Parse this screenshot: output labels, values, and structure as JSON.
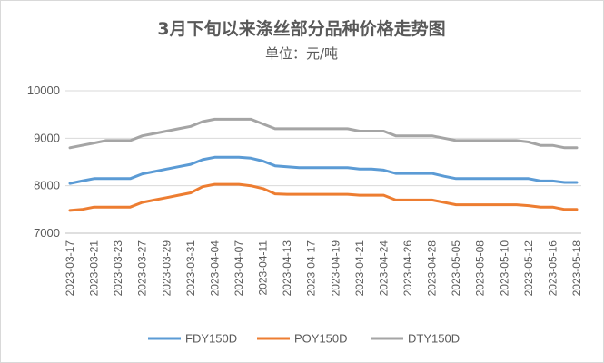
{
  "chart_data": {
    "type": "line",
    "title": "3月下旬以来涤丝部分品种价格走势图",
    "subtitle": "单位：元/吨",
    "xlabel": "",
    "ylabel": "",
    "ylim": [
      7000,
      10000
    ],
    "yticks": [
      7000,
      8000,
      9000,
      10000
    ],
    "grid": "horizontal",
    "legend_position": "bottom",
    "x_tick_labels": [
      "2023-03-17",
      "2023-03-21",
      "2023-03-23",
      "2023-03-27",
      "2023-03-29",
      "2023-03-31",
      "2023-04-04",
      "2023-04-07",
      "2023-04-11",
      "2023-04-13",
      "2023-04-17",
      "2023-04-19",
      "2023-04-21",
      "2023-04-24",
      "2023-04-26",
      "2023-04-28",
      "2023-05-05",
      "2023-05-08",
      "2023-05-10",
      "2023-05-12",
      "2023-05-16",
      "2023-05-18"
    ],
    "x": [
      "2023-03-17",
      "2023-03-20",
      "2023-03-21",
      "2023-03-22",
      "2023-03-23",
      "2023-03-24",
      "2023-03-27",
      "2023-03-28",
      "2023-03-29",
      "2023-03-30",
      "2023-03-31",
      "2023-04-03",
      "2023-04-04",
      "2023-04-06",
      "2023-04-07",
      "2023-04-10",
      "2023-04-11",
      "2023-04-12",
      "2023-04-13",
      "2023-04-14",
      "2023-04-17",
      "2023-04-18",
      "2023-04-19",
      "2023-04-20",
      "2023-04-21",
      "2023-04-23",
      "2023-04-24",
      "2023-04-25",
      "2023-04-26",
      "2023-04-27",
      "2023-04-28",
      "2023-05-04",
      "2023-05-05",
      "2023-05-06",
      "2023-05-08",
      "2023-05-09",
      "2023-05-10",
      "2023-05-11",
      "2023-05-12",
      "2023-05-15",
      "2023-05-16",
      "2023-05-17",
      "2023-05-18"
    ],
    "series": [
      {
        "name": "FDY150D",
        "color": "#5B9BD5",
        "values": [
          8050,
          8100,
          8150,
          8150,
          8150,
          8150,
          8250,
          8300,
          8350,
          8400,
          8450,
          8550,
          8600,
          8600,
          8600,
          8580,
          8520,
          8420,
          8400,
          8380,
          8380,
          8380,
          8380,
          8380,
          8350,
          8350,
          8330,
          8260,
          8260,
          8260,
          8260,
          8200,
          8150,
          8150,
          8150,
          8150,
          8150,
          8150,
          8150,
          8100,
          8100,
          8070,
          8070
        ]
      },
      {
        "name": "POY150D",
        "color": "#ED7D31",
        "values": [
          7480,
          7500,
          7550,
          7550,
          7550,
          7550,
          7650,
          7700,
          7750,
          7800,
          7850,
          7980,
          8030,
          8030,
          8030,
          8000,
          7940,
          7830,
          7820,
          7820,
          7820,
          7820,
          7820,
          7820,
          7800,
          7800,
          7800,
          7700,
          7700,
          7700,
          7700,
          7650,
          7600,
          7600,
          7600,
          7600,
          7600,
          7600,
          7580,
          7550,
          7550,
          7500,
          7500
        ]
      },
      {
        "name": "DTY150D",
        "color": "#A5A5A5",
        "values": [
          8800,
          8850,
          8900,
          8950,
          8950,
          8950,
          9050,
          9100,
          9150,
          9200,
          9250,
          9350,
          9400,
          9400,
          9400,
          9400,
          9300,
          9200,
          9200,
          9200,
          9200,
          9200,
          9200,
          9200,
          9150,
          9150,
          9150,
          9050,
          9050,
          9050,
          9050,
          9000,
          8950,
          8950,
          8950,
          8950,
          8950,
          8950,
          8920,
          8850,
          8850,
          8800,
          8800
        ]
      }
    ]
  }
}
